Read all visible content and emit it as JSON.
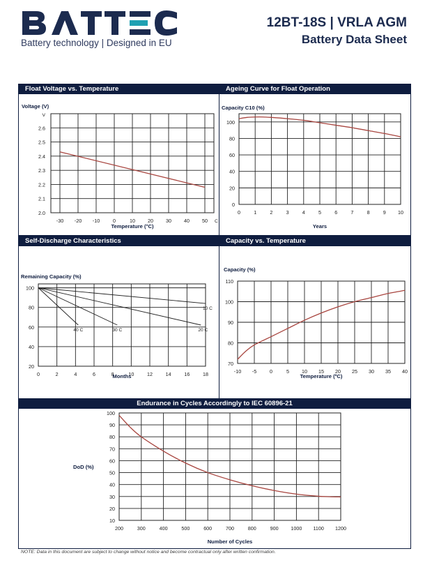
{
  "brand": {
    "logo_text": "BATTEC",
    "tagline": "Battery technology | Designed in EU"
  },
  "header": {
    "model": "12BT-18S | VRLA AGM",
    "doc_type": "Battery Data Sheet"
  },
  "colors": {
    "navy": "#0f1d3f",
    "curve": "#a8453f",
    "heading_text": "#1c2b4f"
  },
  "chart_data": [
    {
      "id": "float",
      "title": "Float Voltage vs. Temperature",
      "type": "line",
      "ylabel": "Voltage (V)",
      "y_unit_mark": "V",
      "xlabel": "Temperature (°C)",
      "x_unit_mark": "C",
      "xlim": [
        -35,
        55
      ],
      "ylim": [
        2.0,
        2.7
      ],
      "x_ticks": [
        "-30",
        "-20",
        "-10",
        "0",
        "10",
        "20",
        "30",
        "40",
        "50"
      ],
      "y_ticks": [
        "2.0",
        "2.1",
        "2.2",
        "2.3",
        "2.4",
        "2.5",
        "2.6"
      ],
      "grid": true,
      "series": [
        {
          "x": [
            -30,
            50
          ],
          "y": [
            2.43,
            2.18
          ]
        }
      ]
    },
    {
      "id": "ageing",
      "title": "Ageing Curve for Float Operation",
      "type": "line",
      "ylabel": "Capacity C10 (%)",
      "xlabel": "Years",
      "xlim": [
        0,
        10
      ],
      "ylim": [
        0,
        110
      ],
      "x_ticks": [
        "0",
        "1",
        "2",
        "3",
        "4",
        "5",
        "6",
        "7",
        "8",
        "9",
        "10"
      ],
      "y_ticks": [
        "0",
        "20",
        "40",
        "60",
        "80",
        "100"
      ],
      "grid": true,
      "series": [
        {
          "x": [
            0,
            0.5,
            1,
            1.5,
            2,
            3,
            4,
            5,
            6,
            7,
            8,
            9,
            10
          ],
          "y": [
            104,
            105.5,
            106,
            106,
            105.5,
            104,
            102,
            99,
            96,
            93,
            89.5,
            86,
            82
          ]
        }
      ]
    },
    {
      "id": "selfdischarge",
      "title": "Self-Discharge Characteristics",
      "type": "line",
      "ylabel": "Remaining Capacity (%)",
      "xlabel": "Months",
      "xlim": [
        0,
        18
      ],
      "ylim": [
        20,
        104
      ],
      "x_ticks": [
        "0",
        "2",
        "4",
        "6",
        "8",
        "10",
        "12",
        "14",
        "16",
        "18"
      ],
      "y_ticks": [
        "20",
        "40",
        "60",
        "80",
        "100"
      ],
      "grid": true,
      "series": [
        {
          "name": "10 C",
          "x": [
            0,
            18
          ],
          "y": [
            100,
            84
          ]
        },
        {
          "name": "20 C",
          "x": [
            0,
            17.5
          ],
          "y": [
            100,
            62
          ]
        },
        {
          "name": "30 C",
          "x": [
            0,
            8.5
          ],
          "y": [
            100,
            62
          ]
        },
        {
          "name": "40 C",
          "x": [
            0,
            4.3
          ],
          "y": [
            100,
            62
          ]
        }
      ]
    },
    {
      "id": "captemp",
      "title": "Capacity vs. Temperature",
      "type": "line",
      "ylabel": "Capacity (%)",
      "xlabel": "Temperature (ºC)",
      "xlim": [
        -10,
        40
      ],
      "ylim": [
        70,
        110
      ],
      "x_ticks": [
        "-10",
        "-5",
        "0",
        "5",
        "10",
        "15",
        "20",
        "25",
        "30",
        "35",
        "40"
      ],
      "y_ticks": [
        "70",
        "80",
        "90",
        "100",
        "110"
      ],
      "grid": true,
      "series": [
        {
          "x": [
            -10,
            -7.5,
            -5,
            0,
            5,
            10,
            15,
            20,
            25,
            30,
            35,
            40
          ],
          "y": [
            72,
            76,
            79,
            83,
            87,
            91,
            94.5,
            97.5,
            100,
            102,
            104,
            105.5
          ]
        }
      ]
    },
    {
      "id": "endurance",
      "title": "Endurance in Cycles Accordingly to IEC 60896-21",
      "type": "line",
      "ylabel": "DoD (%)",
      "xlabel": "Number of Cycles",
      "xlim": [
        200,
        1200
      ],
      "ylim": [
        10,
        100
      ],
      "x_ticks": [
        "200",
        "300",
        "400",
        "500",
        "600",
        "700",
        "800",
        "900",
        "1000",
        "1100",
        "1200"
      ],
      "y_ticks": [
        "10",
        "20",
        "30",
        "40",
        "50",
        "60",
        "70",
        "80",
        "90",
        "100"
      ],
      "grid": true,
      "series": [
        {
          "x": [
            200,
            250,
            300,
            400,
            500,
            600,
            700,
            800,
            900,
            1000,
            1100,
            1150,
            1200
          ],
          "y": [
            98,
            88,
            80,
            68,
            58,
            50,
            44,
            39,
            35,
            32,
            30.2,
            29.8,
            29.6
          ]
        }
      ]
    }
  ],
  "footer": {
    "note": "NOTE: Data in this document are subject to change without notice and become contractual only after written confirmation."
  }
}
